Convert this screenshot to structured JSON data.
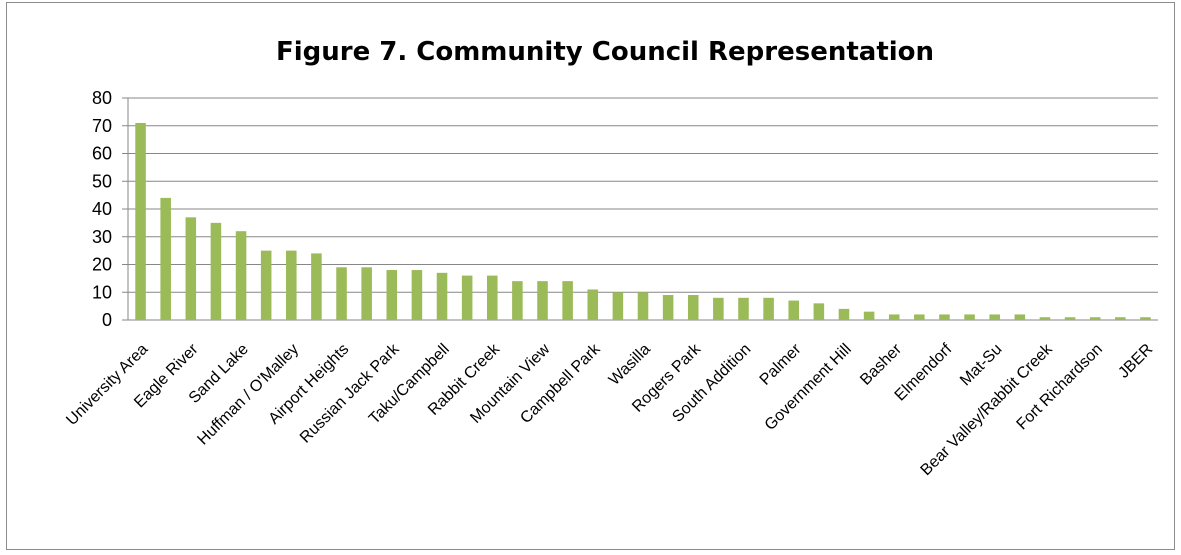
{
  "chart_data": {
    "type": "bar",
    "title": "Figure 7. Community Council Representation",
    "xlabel": "",
    "ylabel": "",
    "ylim": [
      0,
      80
    ],
    "yticks": [
      0,
      10,
      20,
      30,
      40,
      50,
      60,
      70,
      80
    ],
    "grid": true,
    "legend": "none",
    "bar_color": "#9bbb59",
    "categories": [
      "University Area",
      "",
      "Eagle River",
      "",
      "Sand Lake",
      "",
      "Huffman / O'Malley",
      "",
      "Airport Heights",
      "",
      "Russian Jack Park",
      "",
      "Taku/Campbell",
      "",
      "Rabbit Creek",
      "",
      "Mountain View",
      "",
      "Campbell Park",
      "",
      "Wasilla",
      "",
      "Rogers Park",
      "",
      "South Addition",
      "",
      "Palmer",
      "",
      "Government Hill",
      "",
      "Basher",
      "",
      "Elmendorf",
      "",
      "Mat-Su",
      "",
      "Bear Valley/Rabbit Creek",
      "",
      "Fort Richardson",
      "",
      "JBER"
    ],
    "values": [
      71,
      44,
      37,
      35,
      32,
      25,
      25,
      24,
      19,
      19,
      18,
      18,
      17,
      16,
      16,
      14,
      14,
      14,
      11,
      10,
      10,
      9,
      9,
      8,
      8,
      8,
      7,
      6,
      4,
      3,
      2,
      2,
      2,
      2,
      2,
      2,
      1,
      1,
      1,
      1,
      1
    ]
  }
}
